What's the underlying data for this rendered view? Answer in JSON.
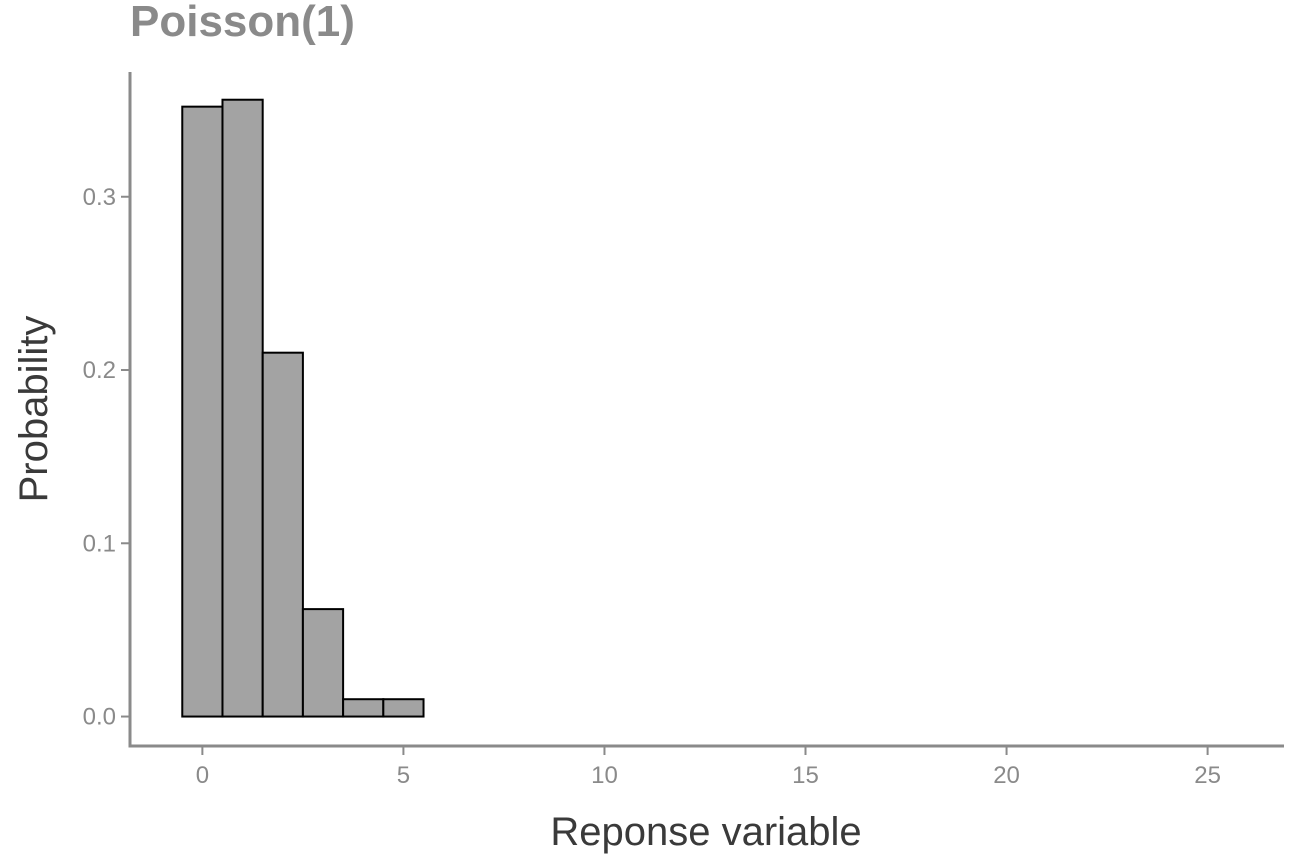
{
  "chart_data": {
    "type": "bar",
    "title": "Poisson(1)",
    "xlabel": "Reponse variable",
    "ylabel": "Probability",
    "x": [
      0,
      1,
      2,
      3,
      4,
      5,
      6,
      7,
      8,
      9,
      10,
      11,
      12,
      13,
      14,
      15,
      16,
      17,
      18,
      19,
      20,
      21,
      22,
      23,
      24,
      25
    ],
    "values": [
      0.352,
      0.356,
      0.21,
      0.062,
      0.01,
      0.01,
      0,
      0,
      0,
      0,
      0,
      0,
      0,
      0,
      0,
      0,
      0,
      0,
      0,
      0,
      0,
      0,
      0,
      0,
      0,
      0
    ],
    "xlim": [
      -1.8,
      26.9
    ],
    "ylim": [
      -0.017,
      0.372
    ],
    "xticks": [
      0,
      5,
      10,
      15,
      20,
      25
    ],
    "xtick_labels": [
      "0",
      "5",
      "10",
      "15",
      "20",
      "25"
    ],
    "yticks": [
      0.0,
      0.1,
      0.2,
      0.3
    ],
    "ytick_labels": [
      "0.0",
      "0.1",
      "0.2",
      "0.3"
    ],
    "grid": false,
    "bar_fill": "#a3a3a3",
    "bar_stroke": "#000000"
  }
}
